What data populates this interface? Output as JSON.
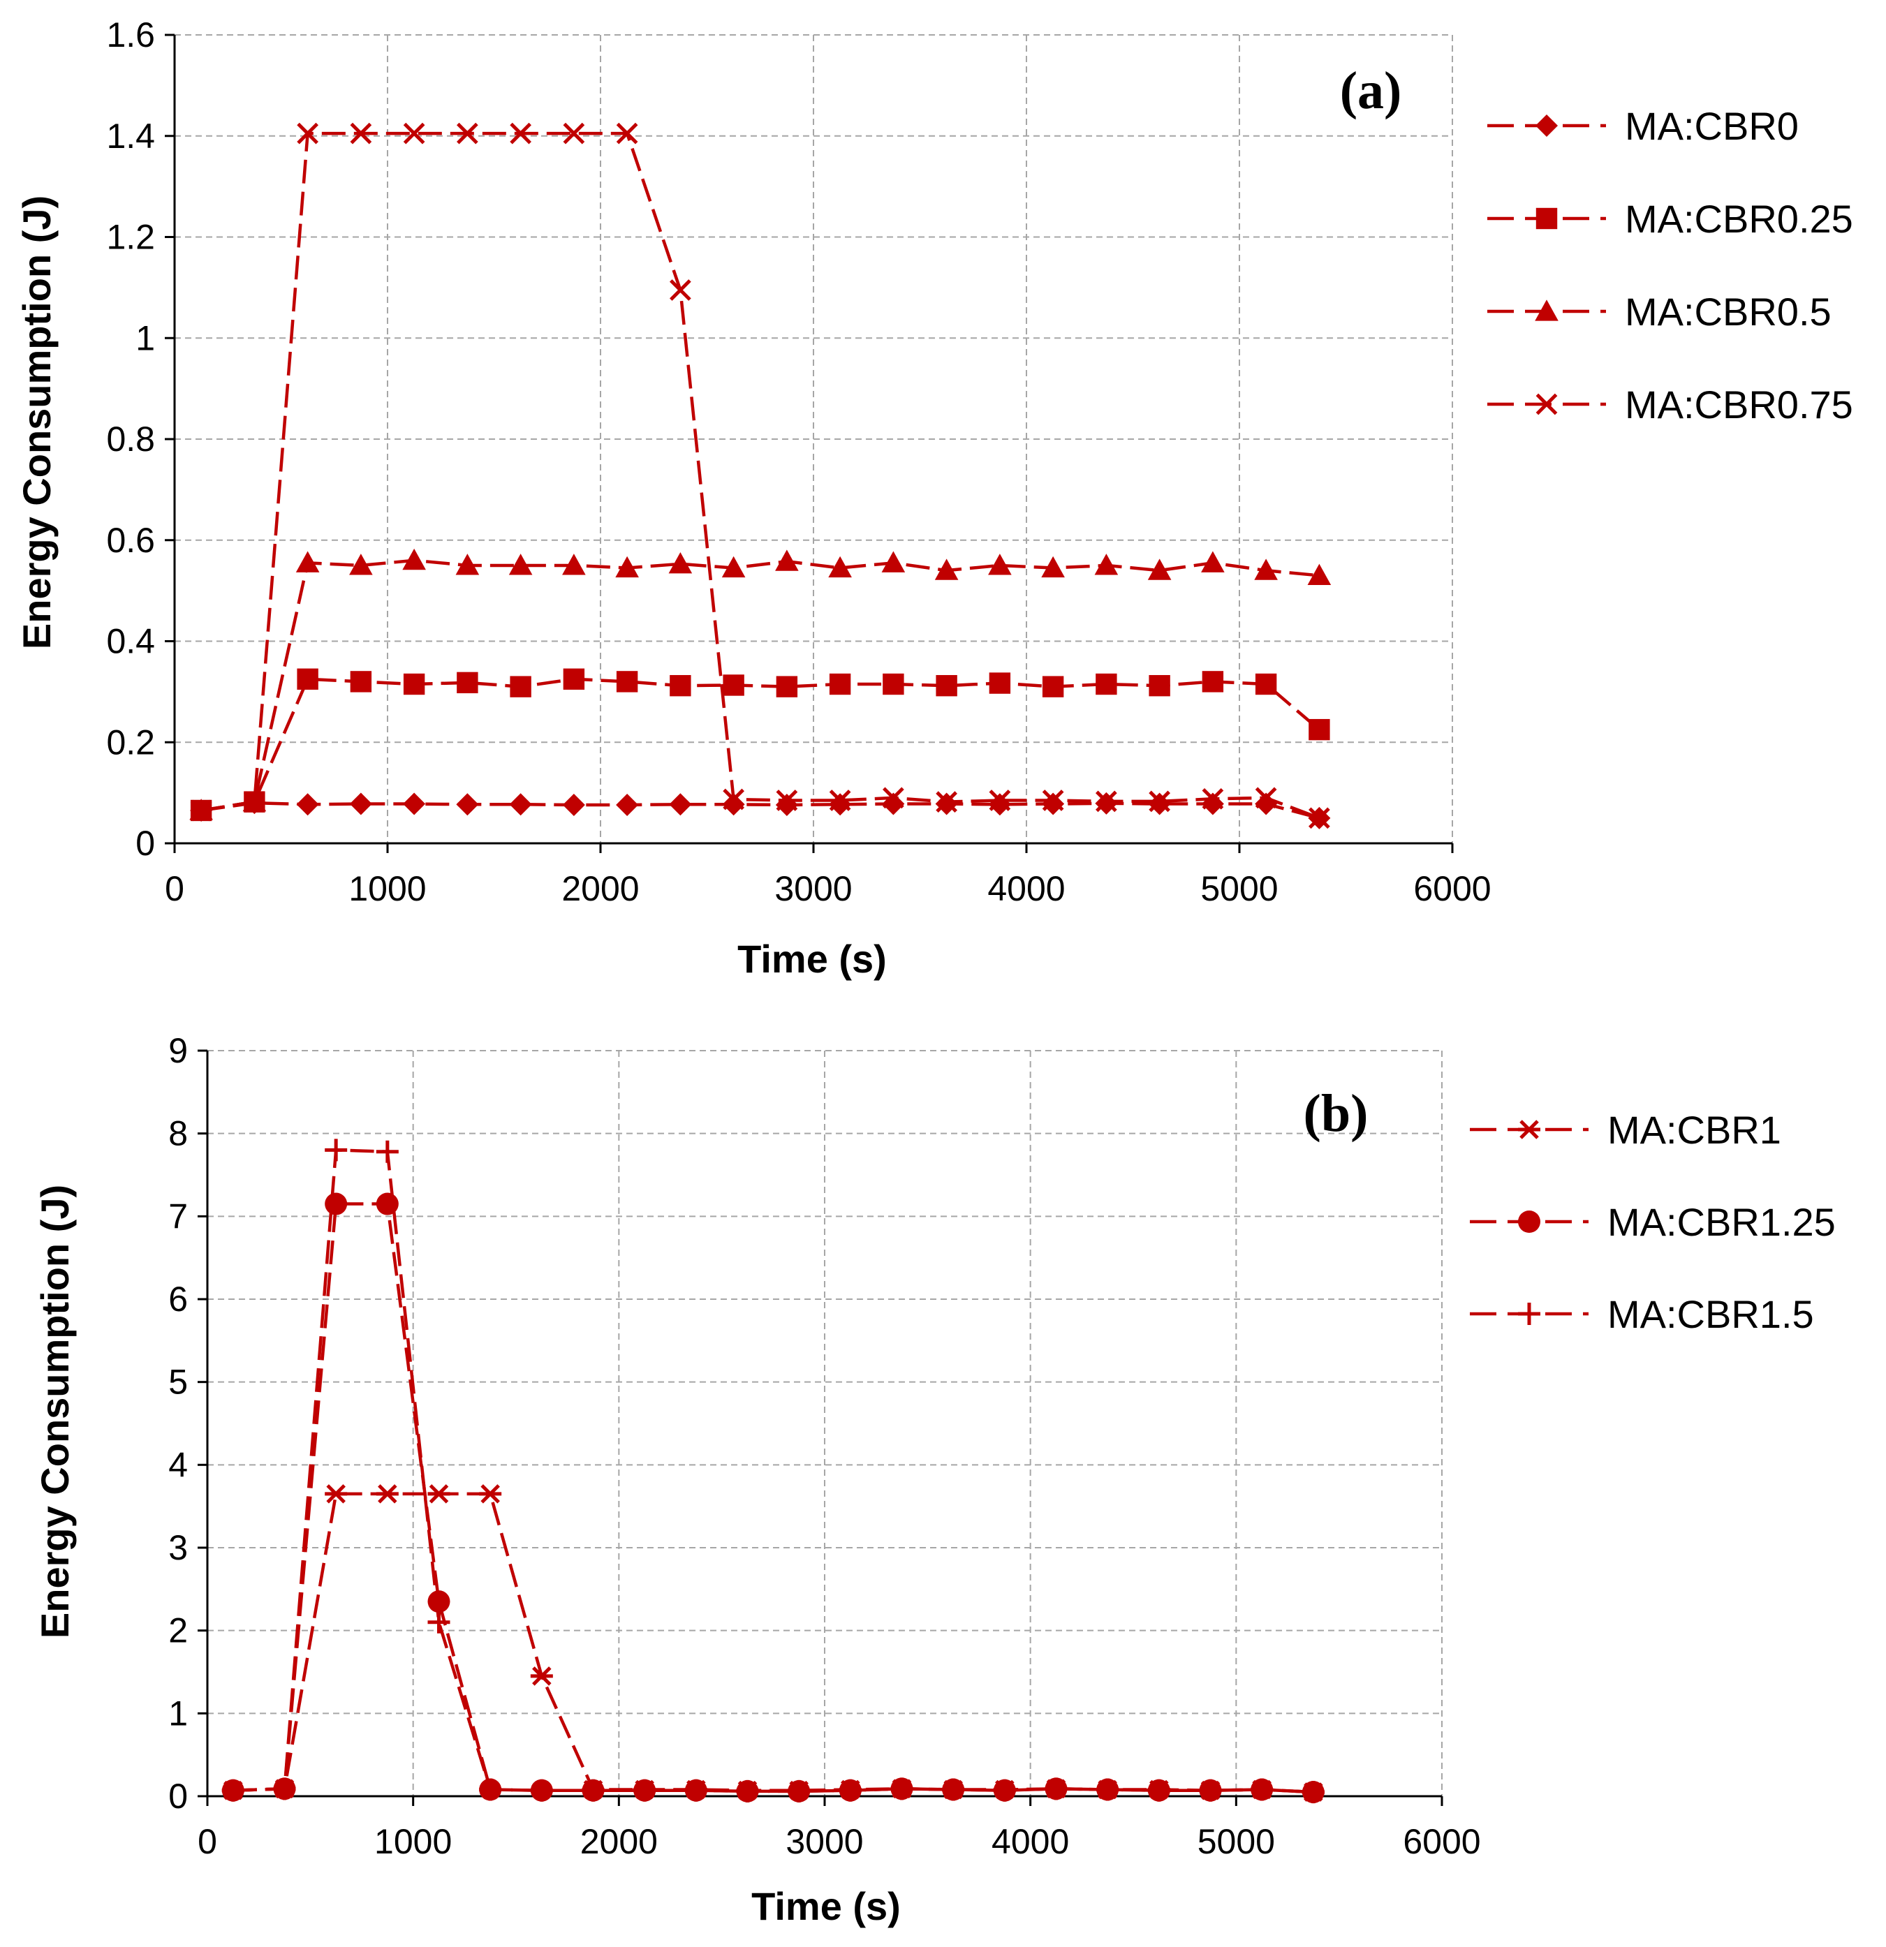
{
  "colors": {
    "series": "#C00000",
    "grid": "#A6A6A6",
    "axis": "#000000"
  },
  "chart_data": [
    {
      "type": "line",
      "panel_label": "(a)",
      "title": "",
      "xlabel": "Time (s)",
      "ylabel": "Energy Consumption (J)",
      "xlim": [
        0,
        6000
      ],
      "ylim": [
        0,
        1.6
      ],
      "xticks": [
        "0",
        "1000",
        "2000",
        "3000",
        "4000",
        "5000",
        "6000"
      ],
      "yticks": [
        "0",
        "0.2",
        "0.4",
        "0.6",
        "0.8",
        "1",
        "1.2",
        "1.4",
        "1.6"
      ],
      "xtick_values": [
        0,
        1000,
        2000,
        3000,
        4000,
        5000,
        6000
      ],
      "ytick_values": [
        0,
        0.2,
        0.4,
        0.6,
        0.8,
        1.0,
        1.2,
        1.4,
        1.6
      ],
      "grid": true,
      "legend_position": "right",
      "x": [
        125,
        375,
        625,
        875,
        1125,
        1375,
        1625,
        1875,
        2125,
        2375,
        2625,
        2875,
        3125,
        3375,
        3625,
        3875,
        4125,
        4375,
        4625,
        4875,
        5125,
        5375
      ],
      "series": [
        {
          "name": "MA:CBR0",
          "marker": "diamond",
          "values": [
            0.065,
            0.08,
            0.077,
            0.078,
            0.078,
            0.077,
            0.077,
            0.076,
            0.076,
            0.077,
            0.077,
            0.076,
            0.077,
            0.078,
            0.078,
            0.077,
            0.078,
            0.079,
            0.078,
            0.078,
            0.078,
            0.05
          ]
        },
        {
          "name": "MA:CBR0.25",
          "marker": "square",
          "values": [
            0.065,
            0.082,
            0.325,
            0.32,
            0.315,
            0.318,
            0.31,
            0.325,
            0.32,
            0.312,
            0.313,
            0.31,
            0.315,
            0.315,
            0.312,
            0.317,
            0.31,
            0.315,
            0.312,
            0.32,
            0.315,
            0.225
          ]
        },
        {
          "name": "MA:CBR0.5",
          "marker": "triangle",
          "values": [
            0.065,
            0.082,
            0.555,
            0.55,
            0.56,
            0.55,
            0.55,
            0.55,
            0.545,
            0.553,
            0.545,
            0.558,
            0.545,
            0.555,
            0.54,
            0.55,
            0.545,
            0.55,
            0.54,
            0.555,
            0.54,
            0.53
          ]
        },
        {
          "name": "MA:CBR0.75",
          "marker": "x",
          "values": [
            0.065,
            0.082,
            1.405,
            1.405,
            1.405,
            1.405,
            1.405,
            1.405,
            1.405,
            1.095,
            0.087,
            0.085,
            0.085,
            0.09,
            0.082,
            0.085,
            0.085,
            0.083,
            0.083,
            0.088,
            0.09,
            0.05
          ]
        }
      ]
    },
    {
      "type": "line",
      "panel_label": "(b)",
      "title": "",
      "xlabel": "Time (s)",
      "ylabel": "Energy Consumption (J)",
      "xlim": [
        0,
        6000
      ],
      "ylim": [
        0,
        9
      ],
      "xticks": [
        "0",
        "1000",
        "2000",
        "3000",
        "4000",
        "5000",
        "6000"
      ],
      "yticks": [
        "0",
        "1",
        "2",
        "3",
        "4",
        "5",
        "6",
        "7",
        "8",
        "9"
      ],
      "xtick_values": [
        0,
        1000,
        2000,
        3000,
        4000,
        5000,
        6000
      ],
      "ytick_values": [
        0,
        1,
        2,
        3,
        4,
        5,
        6,
        7,
        8,
        9
      ],
      "grid": true,
      "legend_position": "right",
      "x": [
        125,
        375,
        625,
        875,
        1125,
        1375,
        1625,
        1875,
        2125,
        2375,
        2625,
        2875,
        3125,
        3375,
        3625,
        3875,
        4125,
        4375,
        4625,
        4875,
        5125,
        5375
      ],
      "series": [
        {
          "name": "MA:CBR1",
          "marker": "asterisk",
          "values": [
            0.07,
            0.09,
            3.65,
            3.65,
            3.65,
            3.65,
            1.45,
            0.08,
            0.08,
            0.08,
            0.07,
            0.07,
            0.08,
            0.09,
            0.08,
            0.08,
            0.09,
            0.08,
            0.08,
            0.07,
            0.08,
            0.05
          ]
        },
        {
          "name": "MA:CBR1.25",
          "marker": "circle",
          "values": [
            0.07,
            0.09,
            7.15,
            7.15,
            2.35,
            0.08,
            0.07,
            0.07,
            0.07,
            0.07,
            0.06,
            0.06,
            0.07,
            0.09,
            0.08,
            0.07,
            0.09,
            0.08,
            0.07,
            0.07,
            0.08,
            0.05
          ]
        },
        {
          "name": "MA:CBR1.5",
          "marker": "plus",
          "values": [
            0.07,
            0.09,
            7.8,
            7.78,
            2.1,
            0.08,
            0.07,
            0.07,
            0.07,
            0.07,
            0.06,
            0.06,
            0.07,
            0.09,
            0.08,
            0.07,
            0.09,
            0.08,
            0.07,
            0.07,
            0.08,
            0.05
          ]
        }
      ]
    }
  ]
}
